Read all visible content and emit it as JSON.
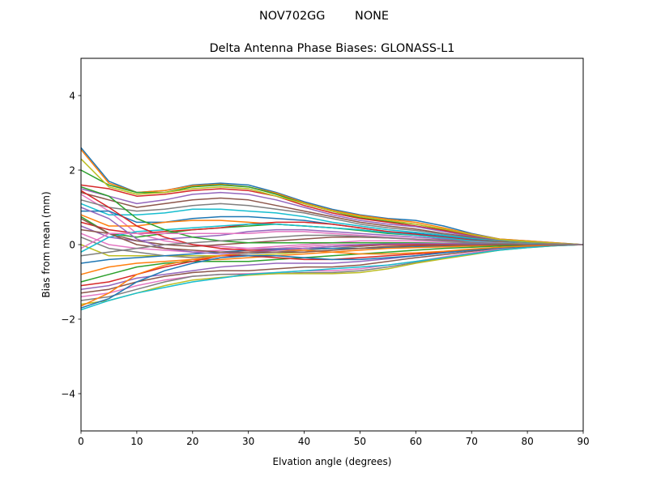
{
  "chart_data": {
    "type": "line",
    "suptitle": "NOV702GG        NONE",
    "title": "Delta Antenna Phase Biases: GLONASS-L1",
    "xlabel": "Elvation angle (degrees)",
    "ylabel": "Bias from mean (mm)",
    "xlim": [
      0,
      90
    ],
    "ylim": [
      -5,
      5
    ],
    "xticks": [
      0,
      10,
      20,
      30,
      40,
      50,
      60,
      70,
      80,
      90
    ],
    "yticks": [
      -4,
      -2,
      0,
      2,
      4
    ],
    "ytick_labels": [
      "−4",
      "−2",
      "0",
      "2",
      "4"
    ],
    "grid": false,
    "colors": [
      "#1f77b4",
      "#ff7f0e",
      "#2ca02c",
      "#d62728",
      "#9467bd",
      "#8c564b",
      "#e377c2",
      "#7f7f7f",
      "#bcbd22",
      "#17becf"
    ],
    "x": [
      0,
      5,
      10,
      15,
      20,
      25,
      30,
      35,
      40,
      45,
      50,
      55,
      60,
      65,
      70,
      75,
      80,
      85,
      90
    ],
    "series": [
      [
        2.6,
        1.7,
        1.4,
        1.45,
        1.6,
        1.65,
        1.6,
        1.4,
        1.15,
        0.95,
        0.8,
        0.7,
        0.65,
        0.5,
        0.3,
        0.15,
        0.1,
        0.05,
        0
      ],
      [
        2.55,
        1.65,
        1.4,
        1.45,
        1.58,
        1.62,
        1.55,
        1.38,
        1.12,
        0.92,
        0.78,
        0.68,
        0.6,
        0.45,
        0.28,
        0.15,
        0.1,
        0.05,
        0
      ],
      [
        2.0,
        1.6,
        1.4,
        1.4,
        1.55,
        1.6,
        1.55,
        1.35,
        1.1,
        0.9,
        0.72,
        0.62,
        0.55,
        0.4,
        0.25,
        0.13,
        0.08,
        0.03,
        0
      ],
      [
        1.6,
        1.5,
        1.3,
        1.35,
        1.45,
        1.5,
        1.45,
        1.3,
        1.05,
        0.85,
        0.7,
        0.6,
        0.5,
        0.38,
        0.24,
        0.12,
        0.07,
        0.03,
        0
      ],
      [
        1.5,
        1.3,
        1.1,
        1.2,
        1.35,
        1.4,
        1.35,
        1.2,
        1.0,
        0.8,
        0.65,
        0.55,
        0.48,
        0.35,
        0.22,
        0.12,
        0.07,
        0.03,
        0
      ],
      [
        1.4,
        1.2,
        1.0,
        1.1,
        1.2,
        1.25,
        1.2,
        1.05,
        0.9,
        0.75,
        0.6,
        0.5,
        0.42,
        0.3,
        0.2,
        0.1,
        0.06,
        0.02,
        0
      ],
      [
        1.35,
        0.9,
        0.3,
        0.1,
        0.0,
        -0.05,
        -0.1,
        -0.1,
        -0.05,
        0.0,
        0.0,
        0.0,
        0.0,
        0.0,
        0.0,
        0.0,
        0,
        0,
        0
      ],
      [
        1.2,
        1.0,
        0.9,
        0.95,
        1.05,
        1.1,
        1.05,
        0.95,
        0.85,
        0.7,
        0.55,
        0.45,
        0.38,
        0.28,
        0.18,
        0.1,
        0.05,
        0.02,
        0
      ],
      [
        2.3,
        1.55,
        1.35,
        1.4,
        1.5,
        1.55,
        1.5,
        1.3,
        1.1,
        0.9,
        0.75,
        0.65,
        0.55,
        0.42,
        0.27,
        0.14,
        0.08,
        0.04,
        0
      ],
      [
        1.1,
        0.8,
        0.8,
        0.85,
        0.95,
        0.95,
        0.9,
        0.85,
        0.75,
        0.6,
        0.5,
        0.4,
        0.33,
        0.25,
        0.16,
        0.09,
        0.05,
        0.02,
        0
      ],
      [
        0.9,
        0.9,
        0.6,
        0.6,
        0.7,
        0.75,
        0.75,
        0.7,
        0.65,
        0.55,
        0.45,
        0.35,
        0.3,
        0.22,
        0.14,
        0.08,
        0.04,
        0.02,
        0
      ],
      [
        0.8,
        0.5,
        0.5,
        0.6,
        0.65,
        0.65,
        0.6,
        0.55,
        0.5,
        0.45,
        0.4,
        0.32,
        0.27,
        0.2,
        0.12,
        0.07,
        0.04,
        0.02,
        0
      ],
      [
        0.75,
        0.3,
        0.2,
        0.3,
        0.4,
        0.45,
        0.5,
        0.55,
        0.5,
        0.45,
        0.38,
        0.3,
        0.25,
        0.18,
        0.12,
        0.06,
        0.03,
        0.01,
        0
      ],
      [
        0.6,
        0.4,
        0.3,
        0.35,
        0.4,
        0.45,
        0.55,
        0.6,
        0.6,
        0.55,
        0.45,
        0.35,
        0.28,
        0.2,
        0.12,
        0.06,
        0.03,
        0.01,
        0
      ],
      [
        0.5,
        0.2,
        0.1,
        0.15,
        0.2,
        0.25,
        0.35,
        0.4,
        0.4,
        0.35,
        0.3,
        0.25,
        0.2,
        0.15,
        0.1,
        0.05,
        0.03,
        0.01,
        0
      ],
      [
        0.4,
        0.3,
        0.1,
        0.0,
        -0.05,
        0.0,
        0.05,
        0.1,
        0.15,
        0.2,
        0.2,
        0.18,
        0.15,
        0.12,
        0.08,
        0.05,
        0.03,
        0.01,
        0
      ],
      [
        0.3,
        0.0,
        -0.1,
        -0.15,
        -0.2,
        -0.15,
        -0.1,
        -0.05,
        0.0,
        0.05,
        0.1,
        0.1,
        0.1,
        0.08,
        0.05,
        0.03,
        0.02,
        0.01,
        0
      ],
      [
        0.2,
        -0.1,
        -0.2,
        -0.3,
        -0.35,
        -0.3,
        -0.25,
        -0.2,
        -0.15,
        -0.1,
        -0.05,
        0.0,
        0.02,
        0.03,
        0.03,
        0.02,
        0.01,
        0,
        0
      ],
      [
        0.0,
        -0.3,
        -0.3,
        -0.3,
        -0.3,
        -0.3,
        -0.3,
        -0.25,
        -0.2,
        -0.15,
        -0.1,
        -0.05,
        -0.03,
        -0.02,
        -0.01,
        0,
        0,
        0,
        0
      ],
      [
        -0.2,
        0.2,
        0.35,
        0.4,
        0.45,
        0.5,
        0.55,
        0.55,
        0.5,
        0.45,
        0.4,
        0.32,
        0.25,
        0.18,
        0.1,
        0.05,
        0.03,
        0.01,
        0
      ],
      [
        -0.5,
        -0.4,
        -0.35,
        -0.3,
        -0.25,
        -0.2,
        -0.15,
        -0.12,
        -0.1,
        -0.1,
        -0.1,
        -0.08,
        -0.06,
        -0.05,
        -0.03,
        -0.02,
        -0.01,
        0,
        0
      ],
      [
        -0.8,
        -0.6,
        -0.5,
        -0.45,
        -0.4,
        -0.4,
        -0.35,
        -0.3,
        -0.25,
        -0.2,
        -0.15,
        -0.1,
        -0.08,
        -0.06,
        -0.04,
        -0.02,
        -0.01,
        0,
        0
      ],
      [
        -1.0,
        -0.8,
        -0.6,
        -0.5,
        -0.45,
        -0.45,
        -0.45,
        -0.4,
        -0.35,
        -0.3,
        -0.25,
        -0.2,
        -0.15,
        -0.1,
        -0.07,
        -0.04,
        -0.02,
        -0.01,
        0
      ],
      [
        -1.1,
        -1.0,
        -0.8,
        -0.6,
        -0.45,
        -0.3,
        -0.3,
        -0.35,
        -0.4,
        -0.4,
        -0.35,
        -0.3,
        -0.25,
        -0.2,
        -0.15,
        -0.1,
        -0.05,
        -0.02,
        0
      ],
      [
        -1.2,
        -1.1,
        -0.9,
        -0.8,
        -0.7,
        -0.6,
        -0.55,
        -0.5,
        -0.5,
        -0.5,
        -0.45,
        -0.38,
        -0.3,
        -0.22,
        -0.15,
        -0.1,
        -0.05,
        -0.02,
        0
      ],
      [
        -1.3,
        -1.2,
        -1.0,
        -0.85,
        -0.75,
        -0.7,
        -0.7,
        -0.65,
        -0.6,
        -0.6,
        -0.55,
        -0.45,
        -0.35,
        -0.27,
        -0.18,
        -0.1,
        -0.05,
        -0.02,
        0
      ],
      [
        -1.4,
        -1.3,
        -1.1,
        -0.95,
        -0.85,
        -0.8,
        -0.78,
        -0.75,
        -0.7,
        -0.7,
        -0.65,
        -0.55,
        -0.45,
        -0.33,
        -0.22,
        -0.12,
        -0.06,
        -0.02,
        0
      ],
      [
        -1.5,
        -1.4,
        -1.2,
        -1.0,
        -0.85,
        -0.8,
        -0.8,
        -0.78,
        -0.75,
        -0.75,
        -0.7,
        -0.6,
        -0.48,
        -0.36,
        -0.25,
        -0.14,
        -0.07,
        -0.03,
        0
      ],
      [
        -1.6,
        -1.5,
        -1.3,
        -1.1,
        -0.95,
        -0.88,
        -0.82,
        -0.78,
        -0.78,
        -0.78,
        -0.75,
        -0.65,
        -0.5,
        -0.38,
        -0.27,
        -0.15,
        -0.08,
        -0.03,
        0
      ],
      [
        -1.75,
        -1.5,
        -1.3,
        -1.15,
        -1.0,
        -0.9,
        -0.8,
        -0.75,
        -0.7,
        -0.65,
        -0.6,
        -0.55,
        -0.45,
        -0.35,
        -0.25,
        -0.15,
        -0.08,
        -0.03,
        0
      ],
      [
        -1.7,
        -1.45,
        -1.0,
        -0.7,
        -0.5,
        -0.35,
        -0.3,
        -0.3,
        -0.35,
        -0.4,
        -0.4,
        -0.35,
        -0.3,
        -0.22,
        -0.15,
        -0.09,
        -0.05,
        -0.02,
        0
      ],
      [
        -1.65,
        -1.3,
        -0.8,
        -0.55,
        -0.4,
        -0.3,
        -0.2,
        -0.15,
        -0.15,
        -0.2,
        -0.25,
        -0.25,
        -0.22,
        -0.18,
        -0.12,
        -0.07,
        -0.04,
        -0.01,
        0
      ],
      [
        1.55,
        1.3,
        0.7,
        0.4,
        0.2,
        0.1,
        0.05,
        0.05,
        0.05,
        0.05,
        0.05,
        0.05,
        0.05,
        0.04,
        0.03,
        0.02,
        0.01,
        0,
        0
      ],
      [
        1.45,
        1.0,
        0.5,
        0.2,
        0.0,
        -0.1,
        -0.15,
        -0.15,
        -0.1,
        -0.05,
        -0.02,
        0.0,
        0.0,
        0.0,
        0,
        0,
        0,
        0,
        0
      ],
      [
        1.0,
        0.7,
        0.15,
        -0.1,
        -0.2,
        -0.25,
        -0.2,
        -0.15,
        -0.1,
        -0.05,
        0,
        0.02,
        0.03,
        0.03,
        0.02,
        0.01,
        0,
        0,
        0
      ],
      [
        0.7,
        0.3,
        0.0,
        -0.1,
        -0.15,
        -0.2,
        -0.2,
        -0.2,
        -0.2,
        -0.15,
        -0.1,
        -0.05,
        -0.03,
        -0.02,
        -0.01,
        0,
        0,
        0,
        0
      ],
      [
        -0.1,
        0.3,
        0.3,
        0.3,
        0.3,
        0.3,
        0.3,
        0.35,
        0.35,
        0.3,
        0.25,
        0.2,
        0.15,
        0.1,
        0.07,
        0.04,
        0.02,
        0.01,
        0
      ],
      [
        -0.3,
        -0.2,
        -0.1,
        0.0,
        0.05,
        0.1,
        0.15,
        0.2,
        0.25,
        0.25,
        0.22,
        0.18,
        0.14,
        0.1,
        0.06,
        0.03,
        0.02,
        0.01,
        0
      ]
    ]
  }
}
